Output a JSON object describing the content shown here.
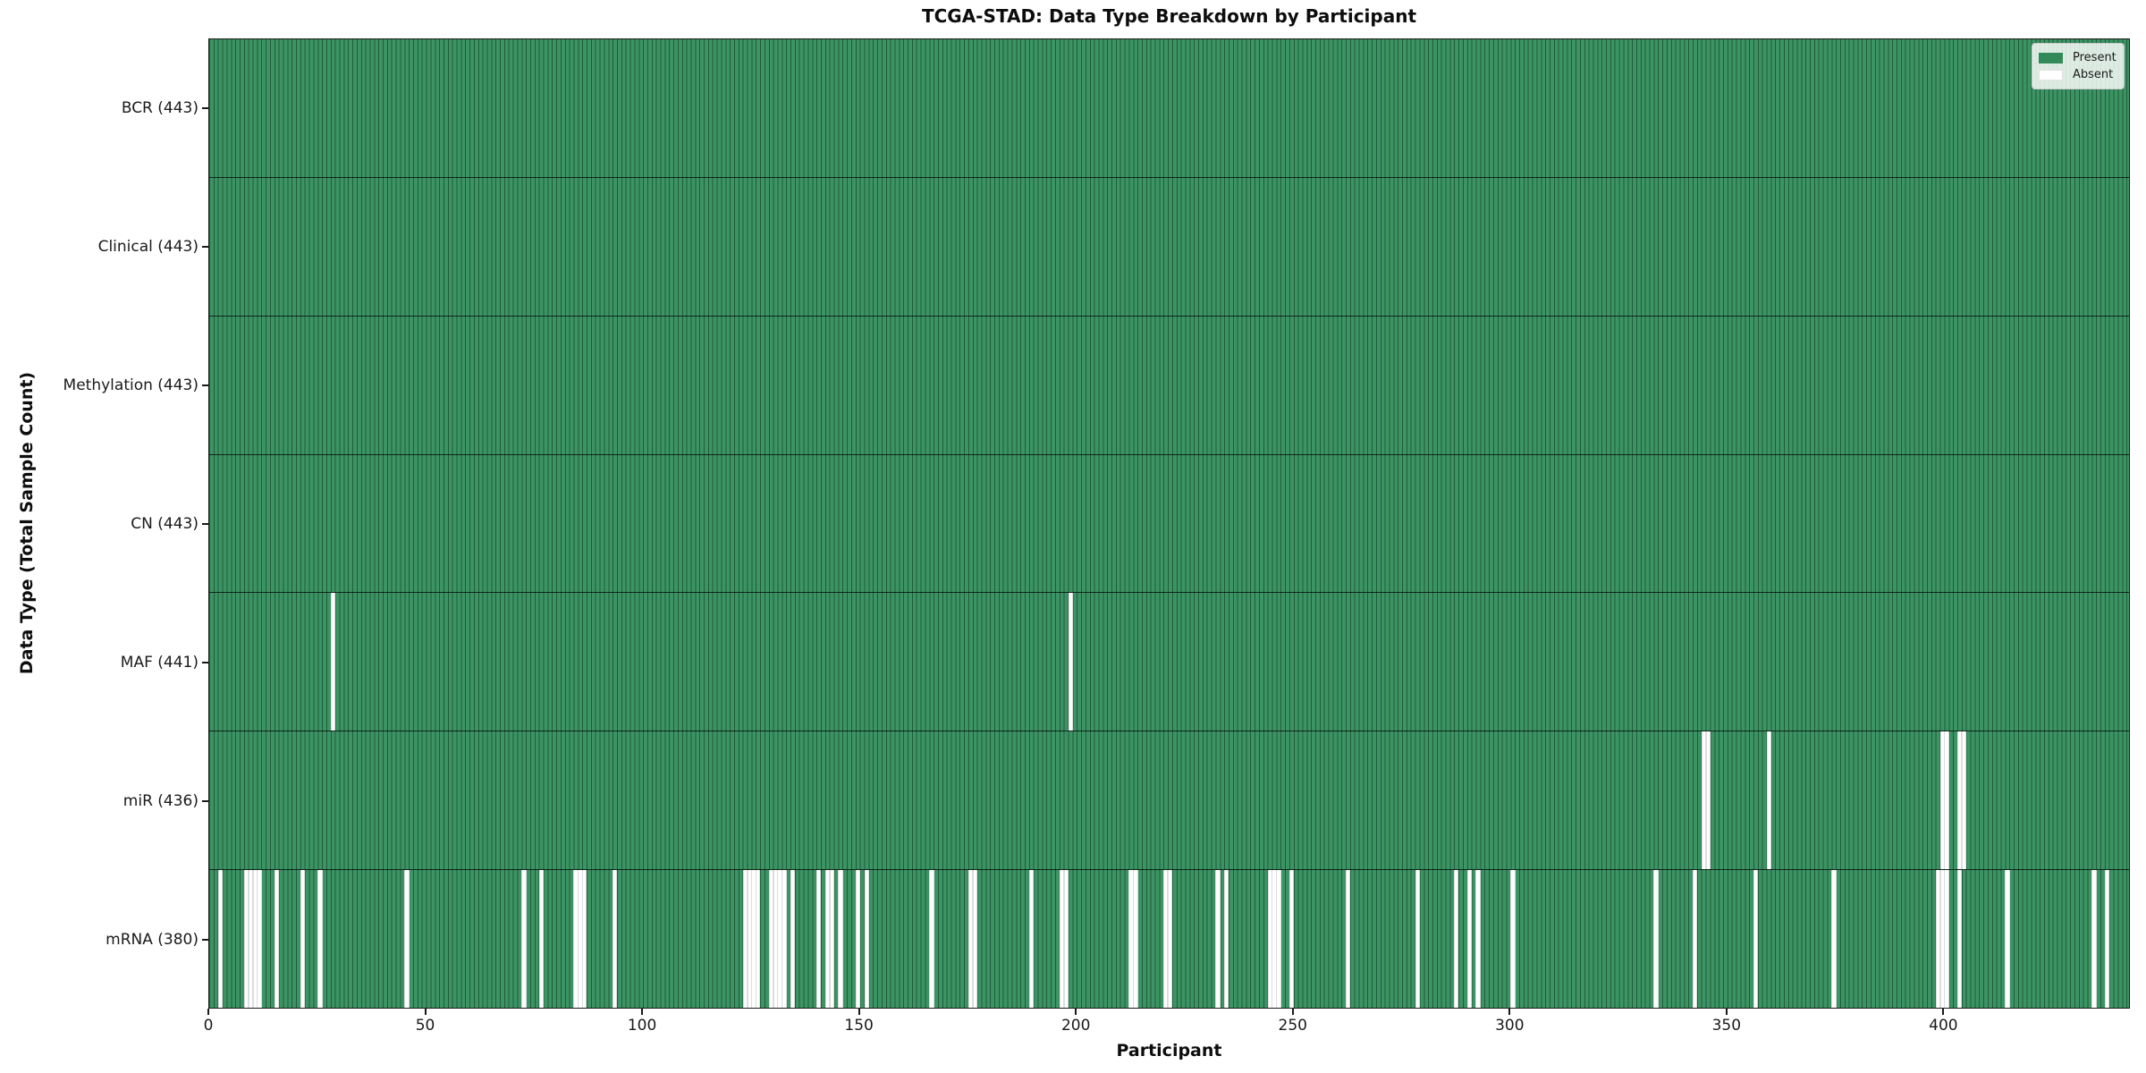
{
  "chart_data": {
    "type": "heatmap",
    "title": "TCGA-STAD: Data Type Breakdown by Participant",
    "xlabel": "Participant",
    "ylabel": "Data Type (Total Sample Count)",
    "legend": {
      "present": "Present",
      "absent": "Absent"
    },
    "legend_position": "upper right",
    "grid": false,
    "n_participants": 443,
    "x_range": [
      0,
      443
    ],
    "x_ticks": [
      0,
      50,
      100,
      150,
      200,
      250,
      300,
      350,
      400
    ],
    "cell_values": {
      "present": 1,
      "absent": 0
    },
    "colors": {
      "present": "#3c9464",
      "present_edge": "#1f5c3a",
      "absent": "#ffffff"
    },
    "rows": [
      {
        "label": "BCR (443)",
        "data_type": "BCR",
        "total_samples": 443,
        "absent_participants": []
      },
      {
        "label": "Clinical (443)",
        "data_type": "Clinical",
        "total_samples": 443,
        "absent_participants": []
      },
      {
        "label": "Methylation (443)",
        "data_type": "Methylation",
        "total_samples": 443,
        "absent_participants": []
      },
      {
        "label": "CN (443)",
        "data_type": "CN",
        "total_samples": 443,
        "absent_participants": []
      },
      {
        "label": "MAF (441)",
        "data_type": "MAF",
        "total_samples": 441,
        "absent_participants": [
          28,
          198
        ]
      },
      {
        "label": "miR (436)",
        "data_type": "miR",
        "total_samples": 436,
        "absent_participants": [
          344,
          345,
          359,
          399,
          400,
          403,
          404
        ]
      },
      {
        "label": "mRNA (380)",
        "data_type": "mRNA",
        "total_samples": 380,
        "absent_participants": [
          2,
          8,
          9,
          10,
          11,
          15,
          21,
          25,
          45,
          72,
          76,
          84,
          85,
          86,
          93,
          123,
          124,
          125,
          126,
          129,
          130,
          131,
          132,
          134,
          140,
          142,
          143,
          145,
          149,
          151,
          166,
          175,
          176,
          189,
          196,
          197,
          212,
          213,
          220,
          221,
          232,
          234,
          244,
          245,
          246,
          249,
          262,
          278,
          287,
          290,
          292,
          300,
          333,
          342,
          356,
          374,
          398,
          399,
          400,
          403,
          414,
          434,
          437
        ]
      }
    ]
  }
}
